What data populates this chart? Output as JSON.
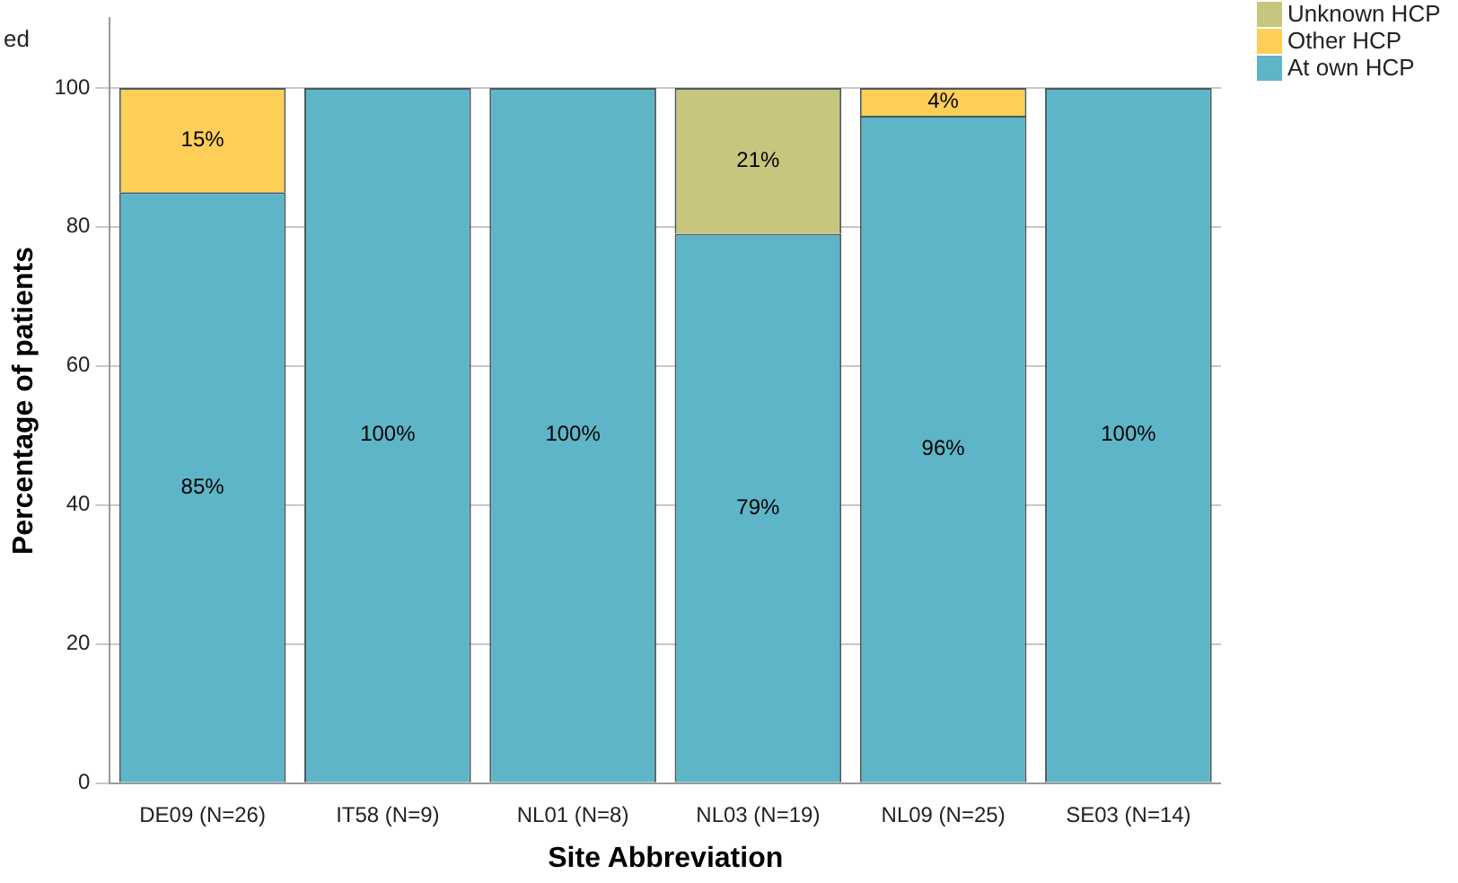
{
  "chart_data": {
    "type": "bar",
    "stacked": true,
    "xlabel": "Site Abbreviation",
    "ylabel": "Percentage of patients",
    "annotations": [
      "ed"
    ],
    "categories": [
      "DE09 (N=26)",
      "IT58 (N=9)",
      "NL01 (N=8)",
      "NL03 (N=19)",
      "NL09 (N=25)",
      "SE03 (N=14)"
    ],
    "series": [
      {
        "name": "At own HCP",
        "color": "#5eb5c7",
        "values": [
          85,
          100,
          100,
          79,
          96,
          100
        ],
        "value_labels": [
          "85%",
          "100%",
          "100%",
          "79%",
          "96%",
          "100%"
        ]
      },
      {
        "name": "Other HCP",
        "color": "#fdcf58",
        "values": [
          15,
          0,
          0,
          0,
          4,
          0
        ],
        "value_labels": [
          "15%",
          null,
          null,
          null,
          "4%",
          null
        ]
      },
      {
        "name": "Unknown HCP",
        "color": "#c8c57e",
        "values": [
          0,
          0,
          0,
          21,
          0,
          0
        ],
        "value_labels": [
          null,
          null,
          null,
          "21%",
          null,
          null
        ]
      }
    ],
    "ylim": [
      0,
      110
    ],
    "yticks": [
      0,
      20,
      40,
      60,
      80,
      100
    ],
    "grid": "y",
    "legend": "top right"
  }
}
